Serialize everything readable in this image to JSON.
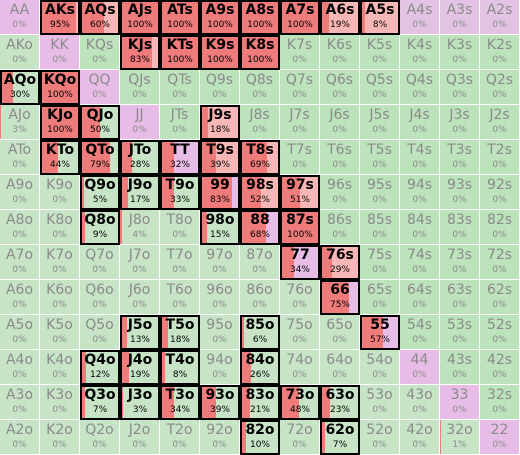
{
  "palette": {
    "raise": "#f07b7b",
    "raise_light": "#f7b7b7",
    "call": "#bde3bd",
    "fold_pair": "#e7bde7",
    "fold_suited": "#e3c3e3",
    "fold_offsuit": "#c7e4c7",
    "selected_border": "#000000"
  },
  "rows": [
    [
      [
        "AA",
        "0%",
        0
      ],
      [
        "AKs",
        "95%",
        95
      ],
      [
        "AQs",
        "60%",
        60
      ],
      [
        "AJs",
        "100%",
        100
      ],
      [
        "ATs",
        "100%",
        100
      ],
      [
        "A9s",
        "100%",
        100
      ],
      [
        "A8s",
        "100%",
        100
      ],
      [
        "A7s",
        "100%",
        100
      ],
      [
        "A6s",
        "19%",
        19
      ],
      [
        "A5s",
        "8%",
        8
      ],
      [
        "A4s",
        "0%",
        0
      ],
      [
        "A3s",
        "0%",
        0
      ],
      [
        "A2s",
        "0%",
        0
      ]
    ],
    [
      [
        "AKo",
        "0%",
        0
      ],
      [
        "KK",
        "0%",
        0
      ],
      [
        "KQs",
        "0%",
        0
      ],
      [
        "KJs",
        "83%",
        83
      ],
      [
        "KTs",
        "100%",
        100
      ],
      [
        "K9s",
        "100%",
        100
      ],
      [
        "K8s",
        "100%",
        100
      ],
      [
        "K7s",
        "0%",
        0
      ],
      [
        "K6s",
        "0%",
        0
      ],
      [
        "K5s",
        "0%",
        0
      ],
      [
        "K4s",
        "0%",
        0
      ],
      [
        "K3s",
        "0%",
        0
      ],
      [
        "K2s",
        "0%",
        0
      ]
    ],
    [
      [
        "AQo",
        "30%",
        30
      ],
      [
        "KQo",
        "100%",
        100
      ],
      [
        "QQ",
        "0%",
        0
      ],
      [
        "QJs",
        "0%",
        0
      ],
      [
        "QTs",
        "0%",
        0
      ],
      [
        "Q9s",
        "0%",
        0
      ],
      [
        "Q8s",
        "0%",
        0
      ],
      [
        "Q7s",
        "0%",
        0
      ],
      [
        "Q6s",
        "0%",
        0
      ],
      [
        "Q5s",
        "0%",
        0
      ],
      [
        "Q4s",
        "0%",
        0
      ],
      [
        "Q3s",
        "0%",
        0
      ],
      [
        "Q2s",
        "0%",
        0
      ]
    ],
    [
      [
        "AJo",
        "3%",
        3
      ],
      [
        "KJo",
        "100%",
        100
      ],
      [
        "QJo",
        "50%",
        50
      ],
      [
        "JJ",
        "0%",
        0
      ],
      [
        "JTs",
        "0%",
        0
      ],
      [
        "J9s",
        "18%",
        18
      ],
      [
        "J8s",
        "0%",
        0
      ],
      [
        "J7s",
        "0%",
        0
      ],
      [
        "J6s",
        "0%",
        0
      ],
      [
        "J5s",
        "0%",
        0
      ],
      [
        "J4s",
        "0%",
        0
      ],
      [
        "J3s",
        "0%",
        0
      ],
      [
        "J2s",
        "0%",
        0
      ]
    ],
    [
      [
        "ATo",
        "0%",
        0
      ],
      [
        "KTo",
        "44%",
        44
      ],
      [
        "QTo",
        "79%",
        79
      ],
      [
        "JTo",
        "28%",
        28
      ],
      [
        "TT",
        "32%",
        32
      ],
      [
        "T9s",
        "39%",
        39
      ],
      [
        "T8s",
        "69%",
        69
      ],
      [
        "T7s",
        "0%",
        0
      ],
      [
        "T6s",
        "0%",
        0
      ],
      [
        "T5s",
        "0%",
        0
      ],
      [
        "T4s",
        "0%",
        0
      ],
      [
        "T3s",
        "0%",
        0
      ],
      [
        "T2s",
        "0%",
        0
      ]
    ],
    [
      [
        "A9o",
        "0%",
        0
      ],
      [
        "K9o",
        "0%",
        0
      ],
      [
        "Q9o",
        "5%",
        5
      ],
      [
        "J9o",
        "17%",
        17
      ],
      [
        "T9o",
        "33%",
        33
      ],
      [
        "99",
        "83%",
        83
      ],
      [
        "98s",
        "52%",
        52
      ],
      [
        "97s",
        "51%",
        51
      ],
      [
        "96s",
        "0%",
        0
      ],
      [
        "95s",
        "0%",
        0
      ],
      [
        "94s",
        "0%",
        0
      ],
      [
        "93s",
        "0%",
        0
      ],
      [
        "92s",
        "0%",
        0
      ]
    ],
    [
      [
        "A8o",
        "0%",
        0
      ],
      [
        "K8o",
        "0%",
        0
      ],
      [
        "Q8o",
        "9%",
        9
      ],
      [
        "J8o",
        "4%",
        4
      ],
      [
        "T8o",
        "0%",
        0
      ],
      [
        "98o",
        "15%",
        15
      ],
      [
        "88",
        "68%",
        68
      ],
      [
        "87s",
        "100%",
        100
      ],
      [
        "86s",
        "0%",
        0
      ],
      [
        "85s",
        "0%",
        0
      ],
      [
        "84s",
        "0%",
        0
      ],
      [
        "83s",
        "0%",
        0
      ],
      [
        "82s",
        "0%",
        0
      ]
    ],
    [
      [
        "A7o",
        "0%",
        0
      ],
      [
        "K7o",
        "0%",
        0
      ],
      [
        "Q7o",
        "0%",
        0
      ],
      [
        "J7o",
        "0%",
        0
      ],
      [
        "T7o",
        "0%",
        0
      ],
      [
        "97o",
        "0%",
        0
      ],
      [
        "87o",
        "0%",
        0
      ],
      [
        "77",
        "34%",
        34
      ],
      [
        "76s",
        "29%",
        29
      ],
      [
        "75s",
        "0%",
        0
      ],
      [
        "74s",
        "0%",
        0
      ],
      [
        "73s",
        "0%",
        0
      ],
      [
        "72s",
        "0%",
        0
      ]
    ],
    [
      [
        "A6o",
        "0%",
        0
      ],
      [
        "K6o",
        "0%",
        0
      ],
      [
        "Q6o",
        "0%",
        0
      ],
      [
        "J6o",
        "0%",
        0
      ],
      [
        "T6o",
        "0%",
        0
      ],
      [
        "96o",
        "0%",
        0
      ],
      [
        "86o",
        "0%",
        0
      ],
      [
        "76o",
        "0%",
        0
      ],
      [
        "66",
        "75%",
        75
      ],
      [
        "65s",
        "0%",
        0
      ],
      [
        "64s",
        "0%",
        0
      ],
      [
        "63s",
        "0%",
        0
      ],
      [
        "62s",
        "0%",
        0
      ]
    ],
    [
      [
        "A5o",
        "0%",
        0
      ],
      [
        "K5o",
        "0%",
        0
      ],
      [
        "Q5o",
        "0%",
        0
      ],
      [
        "J5o",
        "13%",
        13
      ],
      [
        "T5o",
        "18%",
        18
      ],
      [
        "95o",
        "0%",
        0
      ],
      [
        "85o",
        "6%",
        6
      ],
      [
        "75o",
        "0%",
        0
      ],
      [
        "65o",
        "0%",
        0
      ],
      [
        "55",
        "57%",
        57
      ],
      [
        "54s",
        "0%",
        0
      ],
      [
        "53s",
        "0%",
        0
      ],
      [
        "52s",
        "0%",
        0
      ]
    ],
    [
      [
        "A4o",
        "0%",
        0
      ],
      [
        "K4o",
        "0%",
        0
      ],
      [
        "Q4o",
        "12%",
        12
      ],
      [
        "J4o",
        "19%",
        19
      ],
      [
        "T4o",
        "8%",
        8
      ],
      [
        "94o",
        "0%",
        0
      ],
      [
        "84o",
        "26%",
        26
      ],
      [
        "74o",
        "0%",
        0
      ],
      [
        "64o",
        "0%",
        0
      ],
      [
        "54o",
        "0%",
        0
      ],
      [
        "44",
        "0%",
        0
      ],
      [
        "43s",
        "0%",
        0
      ],
      [
        "42s",
        "0%",
        0
      ]
    ],
    [
      [
        "A3o",
        "0%",
        0
      ],
      [
        "K3o",
        "0%",
        0
      ],
      [
        "Q3o",
        "7%",
        7
      ],
      [
        "J3o",
        "3%",
        3
      ],
      [
        "T3o",
        "34%",
        34
      ],
      [
        "93o",
        "39%",
        39
      ],
      [
        "83o",
        "21%",
        21
      ],
      [
        "73o",
        "48%",
        48
      ],
      [
        "63o",
        "23%",
        23
      ],
      [
        "53o",
        "0%",
        0
      ],
      [
        "43o",
        "0%",
        0
      ],
      [
        "33",
        "0%",
        0
      ],
      [
        "32s",
        "0%",
        0
      ]
    ],
    [
      [
        "A2o",
        "0%",
        0
      ],
      [
        "K2o",
        "0%",
        0
      ],
      [
        "Q2o",
        "0%",
        0
      ],
      [
        "J2o",
        "0%",
        0
      ],
      [
        "T2o",
        "0%",
        0
      ],
      [
        "92o",
        "0%",
        0
      ],
      [
        "82o",
        "10%",
        10
      ],
      [
        "72o",
        "0%",
        0
      ],
      [
        "62o",
        "7%",
        7
      ],
      [
        "52o",
        "0%",
        0
      ],
      [
        "42o",
        "0%",
        0
      ],
      [
        "32o",
        "1%",
        1
      ],
      [
        "22",
        "0%",
        0
      ]
    ]
  ],
  "selected": [
    "AKs",
    "AQs",
    "AJs",
    "ATs",
    "A9s",
    "A8s",
    "A7s",
    "A6s",
    "A5s",
    "KJs",
    "KTs",
    "K9s",
    "K8s",
    "AQo",
    "KQo",
    "KJo",
    "J9s",
    "QJo",
    "KTo",
    "QTo",
    "JTo",
    "TT",
    "T9s",
    "T8s",
    "Q9o",
    "J9o",
    "T9o",
    "99",
    "98s",
    "97s",
    "Q8o",
    "98o",
    "88",
    "87s",
    "77",
    "76s",
    "66",
    "J5o",
    "T5o",
    "85o",
    "55",
    "Q4o",
    "J4o",
    "T4o",
    "84o",
    "Q3o",
    "J3o",
    "T3o",
    "93o",
    "83o",
    "73o",
    "63o",
    "82o",
    "62o"
  ]
}
